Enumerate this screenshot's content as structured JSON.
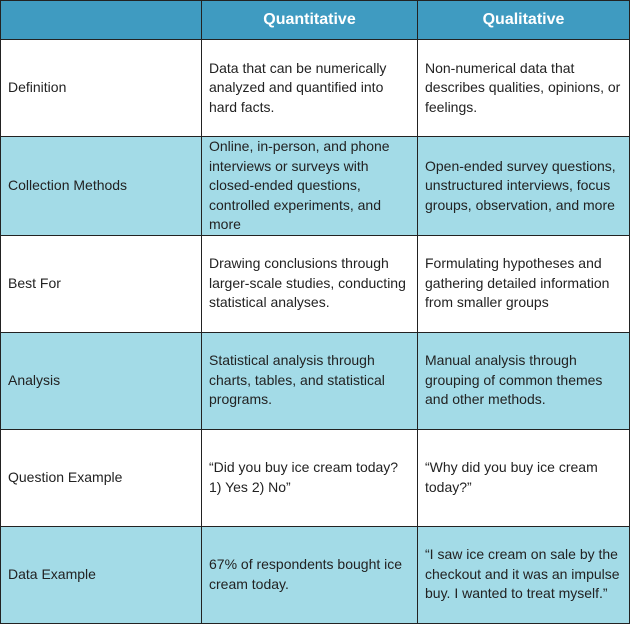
{
  "table": {
    "header": [
      "Quantitative",
      "Qualitative"
    ],
    "rows": [
      [
        "Definition",
        "Data that can be numerically analyzed and quantified into hard facts.",
        "Non-numerical data that describes qualities, opinions, or feelings."
      ],
      [
        "Collection Methods",
        "Online, in-person, and phone interviews or surveys with closed-ended questions, controlled experiments, and more",
        "Open-ended survey questions, unstructured interviews, focus groups, observation, and more"
      ],
      [
        "Best For",
        "Drawing conclusions through larger-scale studies, conducting statistical analyses.",
        "Formulating hypotheses and gathering detailed information from smaller groups"
      ],
      [
        "Analysis",
        "Statistical analysis through charts, tables, and statistical programs.",
        "Manual analysis through grouping of common themes and other methods."
      ],
      [
        "Question Example",
        "“Did you buy ice cream today? 1) Yes 2) No”",
        "“Why did you buy ice cream today?”"
      ],
      [
        "Data Example",
        "67% of respondents bought ice cream today.",
        "“I saw ice cream on sale by the checkout and it was an impulse buy. I wanted to treat myself.”"
      ]
    ]
  }
}
